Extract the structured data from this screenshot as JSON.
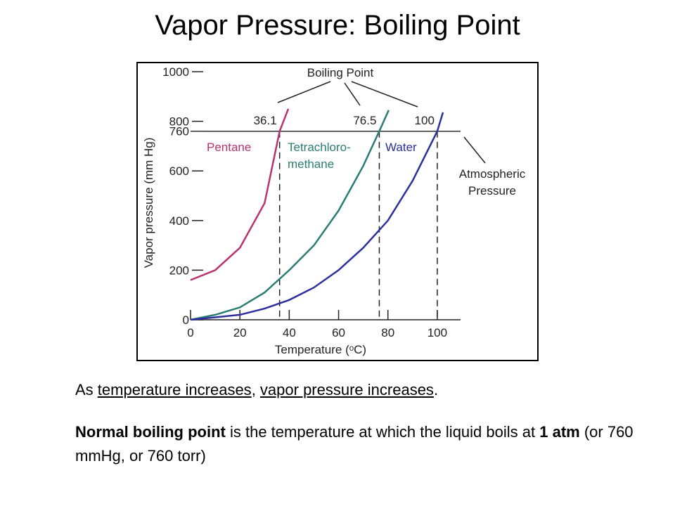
{
  "title": "Vapor Pressure: Boiling Point",
  "body": [
    [
      {
        "text": "As "
      },
      {
        "text": "temperature increases",
        "underline": true
      },
      {
        "text": ", "
      },
      {
        "text": "vapor pressure increases",
        "underline": true
      },
      {
        "text": "."
      }
    ],
    [
      {
        "text": "Normal boiling point",
        "bold": true
      },
      {
        "text": " is the temperature at which the liquid boils at "
      },
      {
        "text": "1 atm",
        "bold": true
      },
      {
        "text": " (or 760 mmHg, or 760 torr)"
      }
    ]
  ],
  "chart_data": {
    "type": "line",
    "x_label": "Temperature (ᵒC)",
    "y_label": "Vapor pressure (mm Hg)",
    "xlim": [
      0,
      110
    ],
    "ylim": [
      0,
      1000
    ],
    "xticks": [
      0,
      20,
      40,
      60,
      80,
      100
    ],
    "yticks": [
      0,
      200,
      400,
      600,
      760,
      800,
      1000
    ],
    "series": [
      {
        "name": "Pentane",
        "color": "#b8336f",
        "x": [
          0,
          10,
          20,
          30,
          36.1,
          39.6
        ],
        "values": [
          160,
          200,
          290,
          470,
          760,
          850
        ]
      },
      {
        "name": "Tetrachloro-methane",
        "color": "#2a7d72",
        "x": [
          0,
          10,
          20,
          30,
          40,
          50,
          60,
          70,
          76.5,
          80.3
        ],
        "values": [
          0,
          20,
          50,
          110,
          200,
          300,
          440,
          620,
          760,
          845
        ]
      },
      {
        "name": "Water",
        "color": "#2d309c",
        "x": [
          0,
          10,
          20,
          30,
          40,
          50,
          60,
          70,
          80,
          90,
          100,
          102.3
        ],
        "values": [
          0,
          10,
          20,
          45,
          80,
          130,
          200,
          290,
          400,
          560,
          760,
          836
        ]
      }
    ],
    "boiling_point_label": "Boiling Point",
    "boiling_points": [
      36.1,
      76.5,
      100
    ],
    "atmospheric_label": "Atmospheric Pressure",
    "atmospheric_pressure": 760
  }
}
